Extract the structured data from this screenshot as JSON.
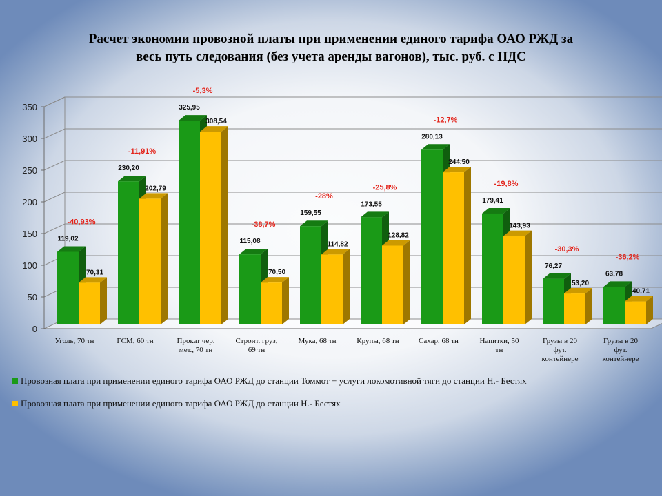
{
  "chart_data": {
    "type": "bar",
    "title": "Расчет экономии провозной платы при применении единого тарифа ОАО РЖД за весь путь следования (без учета аренды вагонов), тыс. руб. с НДС",
    "title_lines": [
      "Расчет экономии провозной платы при применении единого тарифа ОАО РЖД за",
      "весь путь  следования (без учета  аренды вагонов), тыс.  руб.  с НДС"
    ],
    "categories": [
      [
        "Уголь, 70 тн"
      ],
      [
        "ГСМ, 60 тн"
      ],
      [
        "Прокат чер.",
        "мет., 70 тн"
      ],
      [
        "Строит. груз,",
        "69 тн"
      ],
      [
        "Мука, 68 тн"
      ],
      [
        "Крупы, 68 тн"
      ],
      [
        "Сахар, 68 тн"
      ],
      [
        "Напитки,  50",
        "тн"
      ],
      [
        "Грузы в 20",
        "фут.",
        "контейнере"
      ],
      [
        "Грузы в 20",
        "фут.",
        "контейнере"
      ]
    ],
    "series": [
      {
        "name": "Провозная плата при применении единого тарифа ОАО РЖД до станции Томмот + услуги  локомотивной тяги до станции Н.- Бестях",
        "color": "#1a9a17",
        "values": [
          119.02,
          230.2,
          325.95,
          115.08,
          159.55,
          173.55,
          280.13,
          179.41,
          76.27,
          63.78
        ],
        "labels": [
          "119,02",
          "230,20",
          "325,95",
          "115,08",
          "159,55",
          "173,55",
          "280,13",
          "179,41",
          "76,27",
          "63,78"
        ]
      },
      {
        "name": "Провозная плата при применении единого тарифа ОАО РЖД до станции Н.- Бестях",
        "color": "#ffc000",
        "values": [
          70.31,
          202.79,
          308.54,
          70.5,
          114.82,
          128.82,
          244.5,
          143.93,
          53.2,
          40.71
        ],
        "labels": [
          "70,31",
          "202,79",
          "308,54",
          "70,50",
          "114,82",
          "128,82",
          "244,50",
          "143,93",
          "53,20",
          "40,71"
        ]
      }
    ],
    "annotations": [
      "-40,93%",
      "-11,91%",
      "-5,3%",
      "-38,7%",
      "-28%",
      "-25,8%",
      "-12,7%",
      "-19,8%",
      "-30,3%",
      "-36,2%"
    ],
    "annotation_color": "#e3241b",
    "yticks": [
      0,
      50,
      100,
      150,
      200,
      250,
      300,
      350
    ],
    "ylim": [
      0,
      350
    ],
    "grid": true,
    "legend_position": "bottom"
  }
}
